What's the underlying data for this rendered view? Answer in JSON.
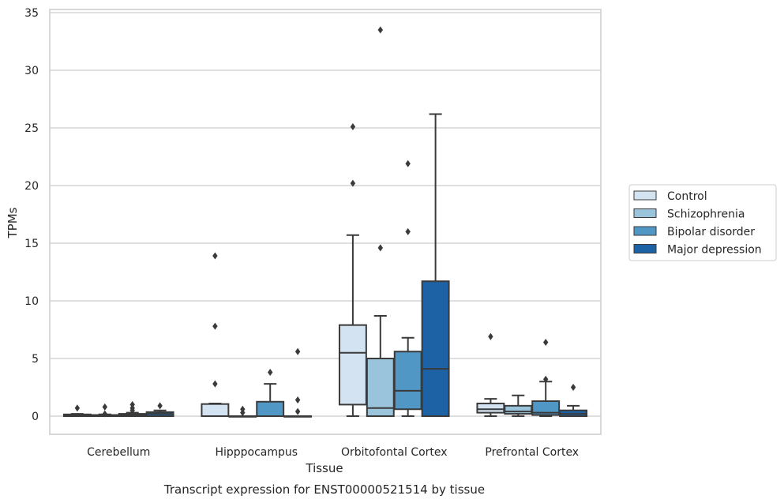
{
  "chart_data": {
    "type": "box",
    "xlabel": "Tissue",
    "ylabel": "TPMs",
    "caption": "Transcript expression for ENST00000521514 by tissue",
    "ylim": [
      -1.6,
      35.3
    ],
    "yticks": [
      0,
      5,
      10,
      15,
      20,
      25,
      30,
      35
    ],
    "grid": "horizontal",
    "legend_position": "right",
    "categories": [
      "Cerebellum",
      "Hipppocampus",
      "Orbitofontal Cortex",
      "Prefrontal Cortex"
    ],
    "series": [
      {
        "name": "Control",
        "color": "#d3e3f2",
        "boxes": [
          {
            "whislo": 0.0,
            "q1": 0.0,
            "med": 0.1,
            "q3": 0.15,
            "whishi": 0.2,
            "fliers": [
              0.7
            ]
          },
          {
            "whislo": 0.0,
            "q1": 0.0,
            "med": 0.0,
            "q3": 1.05,
            "whishi": 1.1,
            "fliers": [
              2.8,
              7.8,
              13.9
            ]
          },
          {
            "whislo": 0.0,
            "q1": 1.0,
            "med": 5.5,
            "q3": 7.9,
            "whishi": 15.7,
            "fliers": [
              20.2,
              25.1
            ]
          },
          {
            "whislo": 0.0,
            "q1": 0.3,
            "med": 0.6,
            "q3": 1.1,
            "whishi": 1.5,
            "fliers": [
              6.9
            ]
          }
        ]
      },
      {
        "name": "Schizophrenia",
        "color": "#9ac4dc",
        "boxes": [
          {
            "whislo": 0.0,
            "q1": 0.0,
            "med": 0.05,
            "q3": 0.1,
            "whishi": 0.15,
            "fliers": [
              0.2,
              0.8
            ]
          },
          {
            "whislo": 0.0,
            "q1": 0.0,
            "med": 0.0,
            "q3": 0.0,
            "whishi": 0.0,
            "fliers": [
              0.3,
              0.6
            ]
          },
          {
            "whislo": 0.0,
            "q1": 0.0,
            "med": 0.7,
            "q3": 5.0,
            "whishi": 8.7,
            "fliers": [
              14.6,
              33.5
            ]
          },
          {
            "whislo": 0.0,
            "q1": 0.2,
            "med": 0.4,
            "q3": 0.9,
            "whishi": 1.8,
            "fliers": []
          }
        ]
      },
      {
        "name": "Bipolar disorder",
        "color": "#5197c6",
        "boxes": [
          {
            "whislo": 0.0,
            "q1": 0.0,
            "med": 0.1,
            "q3": 0.2,
            "whishi": 0.3,
            "fliers": [
              0.5,
              0.7,
              1.0
            ]
          },
          {
            "whislo": 0.0,
            "q1": 0.0,
            "med": 0.0,
            "q3": 1.25,
            "whishi": 2.8,
            "fliers": [
              3.8
            ]
          },
          {
            "whislo": 0.0,
            "q1": 0.6,
            "med": 2.2,
            "q3": 5.6,
            "whishi": 6.8,
            "fliers": [
              16.0,
              21.9
            ]
          },
          {
            "whislo": 0.0,
            "q1": 0.1,
            "med": 0.3,
            "q3": 1.3,
            "whishi": 3.0,
            "fliers": [
              3.2,
              6.4
            ]
          }
        ]
      },
      {
        "name": "Major depression",
        "color": "#1e62a6",
        "boxes": [
          {
            "whislo": 0.0,
            "q1": 0.0,
            "med": 0.2,
            "q3": 0.35,
            "whishi": 0.5,
            "fliers": [
              0.9
            ]
          },
          {
            "whislo": 0.0,
            "q1": 0.0,
            "med": 0.0,
            "q3": 0.0,
            "whishi": 0.0,
            "fliers": [
              0.4,
              1.4,
              5.6
            ]
          },
          {
            "whislo": 0.0,
            "q1": 0.0,
            "med": 4.1,
            "q3": 11.7,
            "whishi": 26.2,
            "fliers": []
          },
          {
            "whislo": 0.0,
            "q1": 0.0,
            "med": 0.2,
            "q3": 0.5,
            "whishi": 0.9,
            "fliers": [
              2.5
            ]
          }
        ]
      }
    ]
  }
}
